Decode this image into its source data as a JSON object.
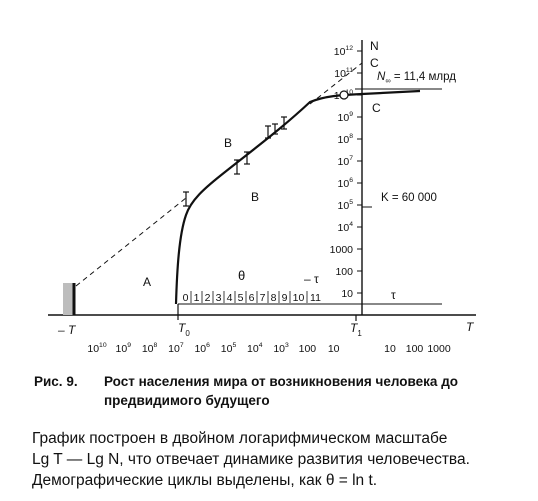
{
  "figure": {
    "y_axis_label": "N",
    "y_ticks": [
      {
        "sup": "12",
        "base": "10",
        "v": 12
      },
      {
        "sup": "11",
        "base": "10",
        "v": 11
      },
      {
        "sup": "10",
        "base": "10",
        "v": 10
      },
      {
        "sup": "9",
        "base": "10",
        "v": 9
      },
      {
        "sup": "8",
        "base": "10",
        "v": 8
      },
      {
        "sup": "7",
        "base": "10",
        "v": 7
      },
      {
        "sup": "6",
        "base": "10",
        "v": 6
      },
      {
        "sup": "5",
        "base": "10",
        "v": 5
      },
      {
        "sup": "4",
        "base": "10",
        "v": 4
      },
      {
        "sup": "",
        "base": "1000",
        "v": 3
      },
      {
        "sup": "",
        "base": "100",
        "v": 2
      },
      {
        "sup": "",
        "base": "10",
        "v": 1
      }
    ],
    "x_axis_label": "T",
    "neg_T_label": "– T",
    "T0_label": "T",
    "T0_sub": "0",
    "T1_label": "T",
    "T1_sub": "1",
    "x_ticks_left": [
      {
        "sup": "10",
        "base": "10"
      },
      {
        "sup": "9",
        "base": "10"
      },
      {
        "sup": "8",
        "base": "10"
      },
      {
        "sup": "7",
        "base": "10"
      },
      {
        "sup": "6",
        "base": "10"
      },
      {
        "sup": "5",
        "base": "10"
      },
      {
        "sup": "4",
        "base": "10"
      },
      {
        "sup": "3",
        "base": "10"
      },
      {
        "sup": "",
        "base": "100"
      },
      {
        "sup": "",
        "base": "10"
      }
    ],
    "x_ticks_right": [
      "10",
      "100",
      "1000"
    ],
    "region_A": "A",
    "region_B": "B",
    "region_B_upper": "B",
    "region_C_upper": "C",
    "region_C_lower": "C",
    "theta_label": "θ",
    "minus_tau_label": "– τ",
    "tau_label": "τ",
    "cycle_numbers": [
      "0",
      "1",
      "2",
      "3",
      "4",
      "5",
      "6",
      "7",
      "8",
      "9",
      "10",
      "11"
    ],
    "n_infinity_prefix": "N",
    "n_infinity_sub": "∞",
    "n_infinity_value": " = 11,4 млрд",
    "k_label": "K = 60 000"
  },
  "caption": {
    "number": "Рис. 9.",
    "title": "Рост населения мира от возникновения человека до предвидимого будущего"
  },
  "body": {
    "line1": "График построен в двойном логарифмическом масштабе",
    "line2": "Lg T — Lg N, что отвечает динамике развития человечества.",
    "line3": "Демографические циклы выделены, как θ = ln t."
  }
}
